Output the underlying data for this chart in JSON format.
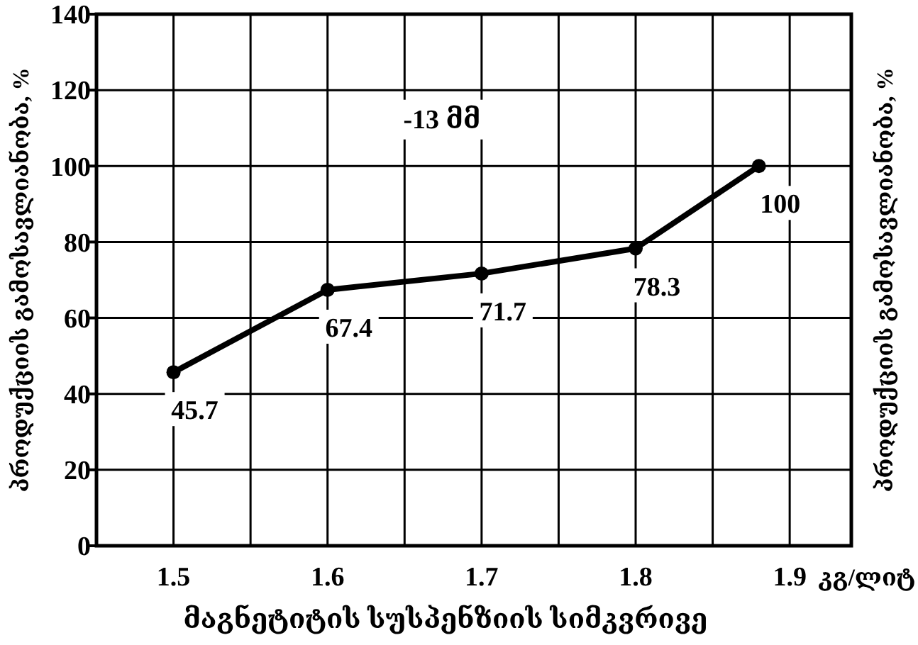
{
  "chart_data": {
    "type": "line",
    "xlabel": "მაგნეტიტის სუსპენზიის სიმკვრივე",
    "ylabel": "პროდუქციის გამოსავლიანობა, %",
    "y2label": "პროდუქციის გამოსავლიანობა, %",
    "annotations": [
      "-13 მმ",
      "კგ/ლიტ"
    ],
    "x": [
      1.5,
      1.6,
      1.7,
      1.8,
      1.88
    ],
    "series": [
      {
        "color": "#000000",
        "values": [
          45.7,
          67.4,
          71.7,
          78.3,
          100
        ]
      }
    ],
    "data_labels": true,
    "marker": "circle",
    "line_style": "solid",
    "grid": true,
    "xlim": [
      1.45,
      1.94
    ],
    "xticks": [
      1.5,
      {
        "value": 1.55,
        "label": null
      },
      1.6,
      {
        "value": 1.65,
        "label": null
      },
      1.7,
      {
        "value": 1.75,
        "label": null
      },
      1.8,
      {
        "value": 1.85,
        "label": null
      },
      1.9
    ],
    "ylim": [
      0,
      140
    ],
    "yticks": [
      0,
      20,
      40,
      60,
      80,
      100,
      120,
      140
    ]
  }
}
